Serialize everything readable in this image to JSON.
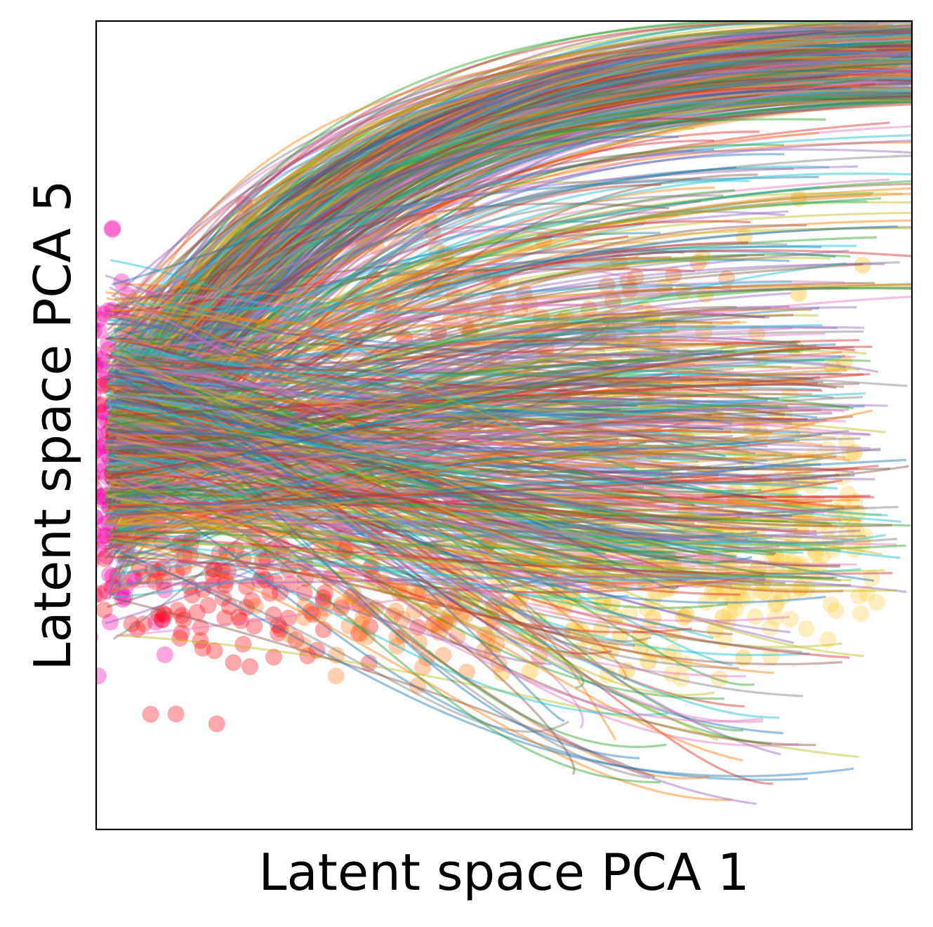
{
  "chart_data": {
    "type": "scatter",
    "title": "",
    "xlabel": "Latent space PCA 1",
    "ylabel": "Latent space PCA 5",
    "xticks": [],
    "yticks": [],
    "xlim": [
      0,
      100
    ],
    "ylim": [
      0,
      100
    ],
    "grid": false,
    "legend": "none",
    "annotations": [],
    "series": [
      {
        "kind": "points",
        "color_scale": [
          "#ff00aa",
          "#ff0a14",
          "#ff7518",
          "#ffb400",
          "#ffd24a"
        ],
        "opacity": 0.35,
        "clusters": [
          {
            "color_index": 0,
            "x": 2,
            "y": 46,
            "sx": 2.6,
            "sy": 10.5,
            "n": 170
          },
          {
            "color_index": 0,
            "x": 5,
            "y": 57,
            "sx": 4.5,
            "sy": 6,
            "n": 30
          },
          {
            "color_index": 1,
            "x": 17,
            "y": 30,
            "sx": 9,
            "sy": 5.5,
            "n": 130
          },
          {
            "color_index": 1,
            "x": 12,
            "y": 54,
            "sx": 6,
            "sy": 8,
            "n": 40
          },
          {
            "color_index": 1,
            "x": 35,
            "y": 48,
            "sx": 9,
            "sy": 9,
            "n": 50
          },
          {
            "color_index": 2,
            "x": 37,
            "y": 27,
            "sx": 9,
            "sy": 4,
            "n": 80
          },
          {
            "color_index": 2,
            "x": 40,
            "y": 60,
            "sx": 10,
            "sy": 9,
            "n": 60
          },
          {
            "color_index": 2,
            "x": 60,
            "y": 66,
            "sx": 12,
            "sy": 6,
            "n": 30
          },
          {
            "color_index": 3,
            "x": 60,
            "y": 31,
            "sx": 10,
            "sy": 5,
            "n": 110
          },
          {
            "color_index": 3,
            "x": 72,
            "y": 56,
            "sx": 10,
            "sy": 9,
            "n": 60
          },
          {
            "color_index": 4,
            "x": 83,
            "y": 38,
            "sx": 6.5,
            "sy": 7,
            "n": 160
          },
          {
            "color_index": 4,
            "x": 73,
            "y": 26,
            "sx": 9,
            "sy": 4,
            "n": 40
          }
        ]
      },
      {
        "kind": "trajectories",
        "palette": [
          "#1f77b4",
          "#ff7f0e",
          "#2ca02c",
          "#d62728",
          "#9467bd",
          "#8c564b",
          "#e377c2",
          "#7f7f7f",
          "#bcbd22",
          "#17becf"
        ],
        "opacity": 0.45,
        "bundles": [
          {
            "name_hidden": true,
            "start": [
              1,
              47
            ],
            "end_x": [
              88,
              112
            ],
            "end_y": [
              90,
              100
            ],
            "via_x": [
              15,
              30
            ],
            "count": 360
          },
          {
            "name_hidden": true,
            "start": [
              1,
              47
            ],
            "end_x": [
              60,
              110
            ],
            "end_y": [
              66,
              88
            ],
            "via_x": [
              20,
              40
            ],
            "count": 110
          },
          {
            "name_hidden": true,
            "start": [
              1,
              47
            ],
            "end_x": [
              62,
              95
            ],
            "end_y": [
              30,
              65
            ],
            "via_x": [
              30,
              55
            ],
            "count": 330
          },
          {
            "name_hidden": true,
            "start": [
              1,
              47
            ],
            "end_x": [
              55,
              95
            ],
            "end_y": [
              3,
              35
            ],
            "via_x": [
              40,
              70
            ],
            "count": 80
          },
          {
            "name_hidden": true,
            "start": [
              1,
              47
            ],
            "end_x": [
              88,
              100
            ],
            "end_y": [
              28,
              60
            ],
            "via_x": [
              40,
              70
            ],
            "count": 70
          }
        ]
      }
    ]
  }
}
